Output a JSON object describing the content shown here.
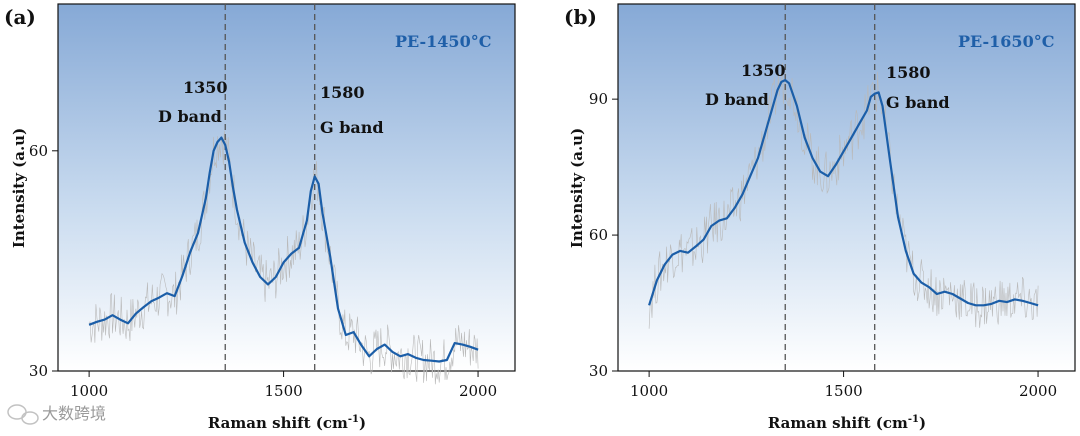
{
  "watermark": "大数跨境",
  "colors": {
    "line": "#1b5ea8",
    "noise": "#b9b9b9",
    "band_marker": "#555555",
    "bg_top": "#8fb1db",
    "bg_bottom": "#ffffff",
    "sample_label": "#1f5fa8"
  },
  "chart_data": [
    {
      "type": "line",
      "panel_label": "(a)",
      "sample_label": "PE-1450°C",
      "xlabel_main": "Raman shift (cm",
      "xlabel_sup": "-1",
      "xlabel_close": ")",
      "ylabel": "Intensity (a.u)",
      "xlim": [
        920,
        2095
      ],
      "ylim": [
        30,
        80
      ],
      "xticks": [
        1000,
        1500,
        2000
      ],
      "yticks": [
        30,
        60
      ],
      "xtick_labels": [
        "1000",
        "1500",
        "2000"
      ],
      "ytick_labels": [
        "30",
        "60"
      ],
      "band_markers": [
        {
          "x": 1350,
          "value": "1350",
          "name": "D band"
        },
        {
          "x": 1580,
          "value": "1580",
          "name": "G band"
        }
      ],
      "series": [
        {
          "name": "smoothed",
          "x": [
            1000,
            1020,
            1040,
            1060,
            1080,
            1100,
            1120,
            1140,
            1160,
            1180,
            1200,
            1220,
            1240,
            1260,
            1280,
            1300,
            1310,
            1320,
            1330,
            1340,
            1350,
            1360,
            1370,
            1380,
            1400,
            1420,
            1440,
            1460,
            1480,
            1500,
            1520,
            1540,
            1560,
            1570,
            1580,
            1590,
            1600,
            1620,
            1640,
            1660,
            1680,
            1700,
            1720,
            1740,
            1760,
            1780,
            1800,
            1820,
            1840,
            1860,
            1880,
            1900,
            1920,
            1940,
            1960,
            1980,
            2000
          ],
          "values": [
            36.3,
            36.7,
            37.0,
            37.6,
            37.0,
            36.5,
            37.8,
            38.7,
            39.5,
            40.0,
            40.6,
            40.2,
            43.0,
            46.2,
            48.8,
            53.5,
            57.0,
            60.0,
            61.2,
            61.8,
            60.8,
            58.5,
            55.0,
            52.0,
            47.5,
            44.8,
            42.8,
            41.8,
            42.8,
            44.8,
            46.0,
            46.8,
            50.5,
            54.5,
            56.5,
            55.5,
            51.5,
            45.5,
            38.5,
            34.9,
            35.3,
            33.5,
            32.0,
            33.0,
            33.6,
            32.6,
            32.0,
            32.3,
            31.8,
            31.5,
            31.4,
            31.3,
            31.5,
            33.8,
            33.6,
            33.3,
            32.9
          ]
        }
      ]
    },
    {
      "type": "line",
      "panel_label": "(b)",
      "sample_label": "PE-1650°C",
      "xlabel_main": "Raman shift (cm",
      "xlabel_sup": "-1",
      "xlabel_close": ")",
      "ylabel": "Intensity (a.u)",
      "xlim": [
        920,
        2095
      ],
      "ylim": [
        30,
        111
      ],
      "xticks": [
        1000,
        1500,
        2000
      ],
      "yticks": [
        30,
        60,
        90
      ],
      "xtick_labels": [
        "1000",
        "1500",
        "2000"
      ],
      "ytick_labels": [
        "30",
        "60",
        "90"
      ],
      "band_markers": [
        {
          "x": 1350,
          "value": "1350",
          "name": "D band"
        },
        {
          "x": 1580,
          "value": "1580",
          "name": "G band"
        }
      ],
      "series": [
        {
          "name": "smoothed",
          "x": [
            1000,
            1020,
            1040,
            1060,
            1080,
            1100,
            1120,
            1140,
            1160,
            1180,
            1200,
            1220,
            1240,
            1260,
            1280,
            1300,
            1320,
            1330,
            1340,
            1350,
            1360,
            1380,
            1400,
            1420,
            1440,
            1460,
            1480,
            1500,
            1520,
            1540,
            1560,
            1570,
            1580,
            1590,
            1600,
            1620,
            1640,
            1660,
            1680,
            1700,
            1720,
            1740,
            1760,
            1780,
            1800,
            1820,
            1840,
            1860,
            1880,
            1900,
            1920,
            1940,
            1960,
            1980,
            2000
          ],
          "values": [
            44.5,
            50.0,
            53.5,
            55.7,
            56.5,
            56.1,
            57.5,
            59.0,
            62.0,
            63.2,
            63.7,
            66.0,
            69.0,
            73.0,
            77.0,
            83.0,
            89.0,
            92.0,
            93.8,
            94.2,
            93.5,
            88.5,
            81.5,
            77.0,
            74.0,
            73.0,
            75.5,
            78.5,
            81.5,
            84.5,
            87.5,
            90.5,
            91.2,
            91.5,
            88.5,
            76.0,
            64.0,
            56.5,
            51.5,
            49.5,
            48.5,
            47.0,
            47.5,
            47.0,
            46.0,
            45.0,
            44.5,
            44.5,
            44.8,
            45.5,
            45.2,
            45.8,
            45.5,
            45.0,
            44.5
          ]
        }
      ]
    }
  ]
}
